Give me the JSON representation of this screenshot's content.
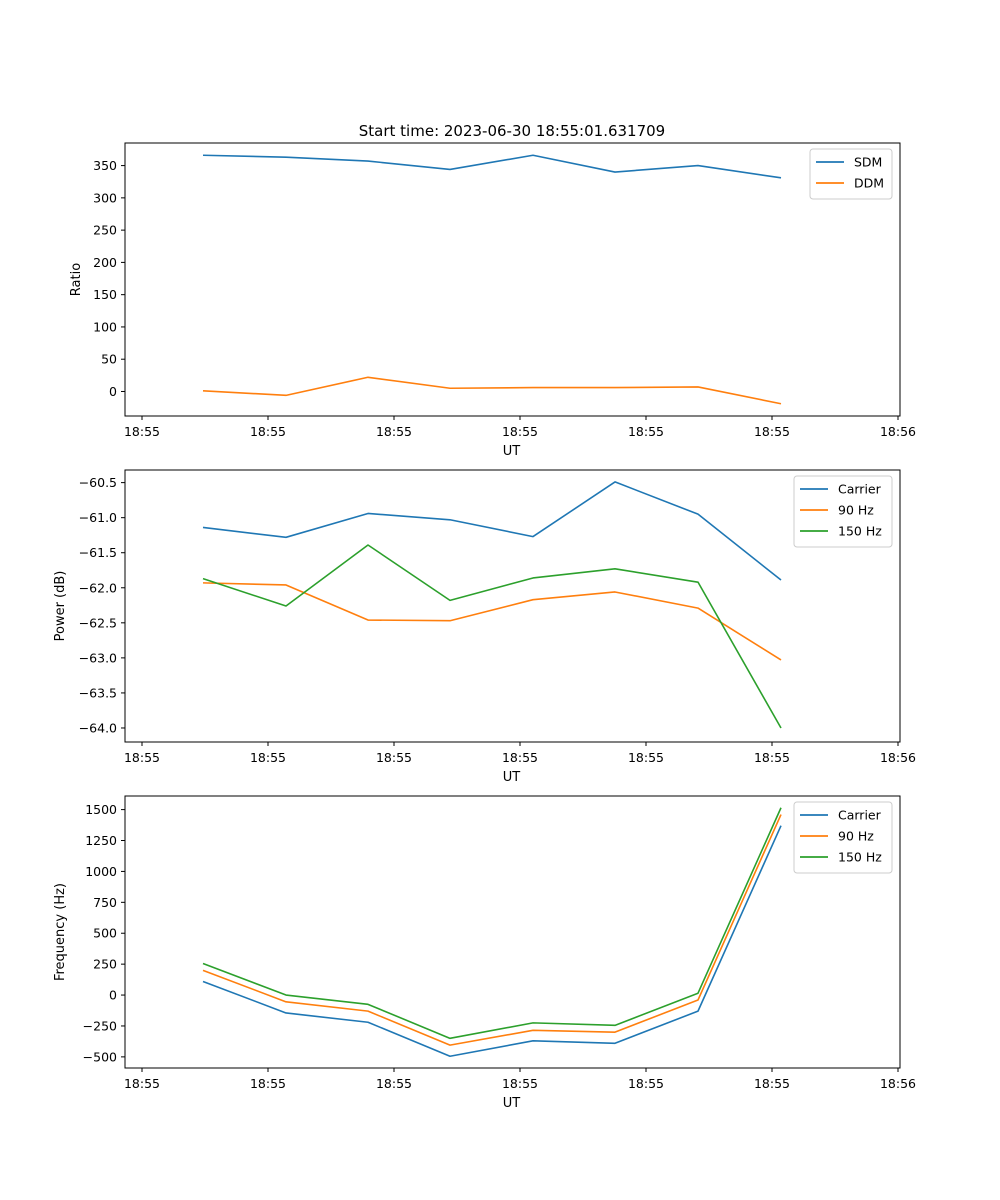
{
  "figure": {
    "suptitle": "Start time: 2023-06-30 18:55:01.631709"
  },
  "chart_data": [
    {
      "type": "line",
      "title": "",
      "xlabel": "UT",
      "ylabel": "Ratio",
      "x_tick_labels": [
        "18:55",
        "18:55",
        "18:55",
        "18:55",
        "18:55",
        "18:55",
        "18:56"
      ],
      "ylim": [
        -38,
        385
      ],
      "yticks": [
        0,
        50,
        100,
        150,
        200,
        250,
        300,
        350
      ],
      "legend_position": "top-right",
      "grid": false,
      "series": [
        {
          "name": "SDM",
          "color": "#1f77b4",
          "values": [
            366,
            363,
            357,
            344,
            366,
            340,
            350,
            331
          ]
        },
        {
          "name": "DDM",
          "color": "#ff7f0e",
          "values": [
            1,
            -6,
            22,
            5,
            6,
            6,
            7,
            -19
          ]
        }
      ]
    },
    {
      "type": "line",
      "title": "",
      "xlabel": "UT",
      "ylabel": "Power (dB)",
      "x_tick_labels": [
        "18:55",
        "18:55",
        "18:55",
        "18:55",
        "18:55",
        "18:55",
        "18:56"
      ],
      "ylim": [
        -64.2,
        -60.32
      ],
      "yticks": [
        -64.0,
        -63.5,
        -63.0,
        -62.5,
        -62.0,
        -61.5,
        -61.0,
        -60.5
      ],
      "legend_position": "top-right",
      "grid": false,
      "series": [
        {
          "name": "Carrier",
          "color": "#1f77b4",
          "values": [
            -61.14,
            -61.28,
            -60.94,
            -61.03,
            -61.27,
            -60.49,
            -60.95,
            -61.89
          ]
        },
        {
          "name": "90 Hz",
          "color": "#ff7f0e",
          "values": [
            -61.93,
            -61.96,
            -62.46,
            -62.47,
            -62.17,
            -62.06,
            -62.29,
            -63.03
          ]
        },
        {
          "name": "150 Hz",
          "color": "#2ca02c",
          "values": [
            -61.87,
            -62.26,
            -61.39,
            -62.18,
            -61.86,
            -61.73,
            -61.92,
            -64.0
          ]
        }
      ]
    },
    {
      "type": "line",
      "title": "",
      "xlabel": "UT",
      "ylabel": "Frequency (Hz)",
      "x_tick_labels": [
        "18:55",
        "18:55",
        "18:55",
        "18:55",
        "18:55",
        "18:55",
        "18:56"
      ],
      "ylim": [
        -590,
        1610
      ],
      "yticks": [
        -500,
        -250,
        0,
        250,
        500,
        750,
        1000,
        1250,
        1500
      ],
      "legend_position": "top-right",
      "grid": false,
      "series": [
        {
          "name": "Carrier",
          "color": "#1f77b4",
          "values": [
            110,
            -145,
            -220,
            -495,
            -370,
            -390,
            -130,
            1370
          ]
        },
        {
          "name": "90 Hz",
          "color": "#ff7f0e",
          "values": [
            200,
            -55,
            -130,
            -405,
            -285,
            -300,
            -40,
            1460
          ]
        },
        {
          "name": "150 Hz",
          "color": "#2ca02c",
          "values": [
            255,
            0,
            -75,
            -350,
            -225,
            -245,
            15,
            1515
          ]
        }
      ]
    }
  ]
}
